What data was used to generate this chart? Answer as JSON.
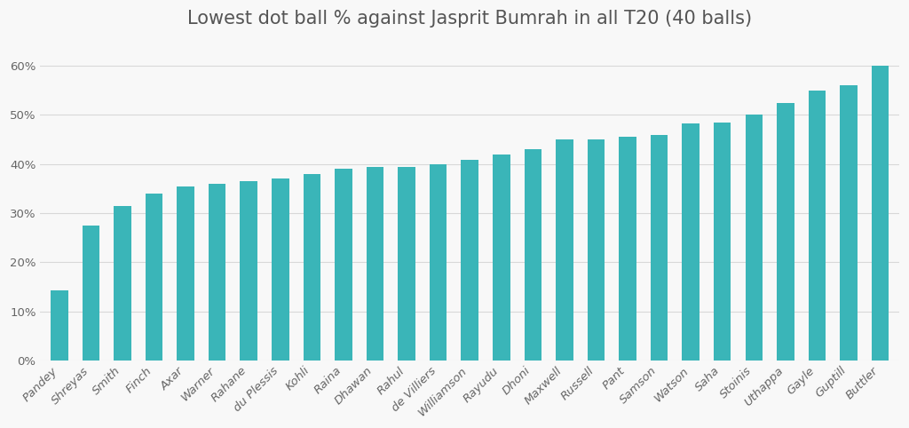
{
  "title": "Lowest dot ball % against Jasprit Bumrah in all T20 (40 balls)",
  "categories": [
    "Pandey",
    "Shreyas",
    "Smith",
    "Finch",
    "Axar",
    "Warner",
    "Rahane",
    "du Plessis",
    "Kohli",
    "Raina",
    "Dhawan",
    "Rahul",
    "de Villiers",
    "Williamson",
    "Rayudu",
    "Dhoni",
    "Maxwell",
    "Russell",
    "Pant",
    "Samson",
    "Watson",
    "Saha",
    "Stoinis",
    "Uthappa",
    "Gayle",
    "Guptill",
    "Buttler"
  ],
  "values": [
    14.3,
    27.5,
    31.5,
    34.0,
    35.5,
    36.0,
    36.5,
    37.0,
    38.0,
    39.0,
    39.5,
    39.5,
    40.0,
    40.8,
    42.0,
    43.0,
    45.0,
    45.0,
    45.5,
    46.0,
    48.2,
    48.5,
    50.0,
    52.5,
    55.0,
    56.0,
    60.0
  ],
  "bar_color": "#3ab5b8",
  "background_color": "#f8f8f8",
  "plot_bg_color": "#f8f8f8",
  "ylim": [
    0,
    65
  ],
  "ytick_values": [
    0,
    10,
    20,
    30,
    40,
    50,
    60
  ],
  "title_fontsize": 15,
  "tick_fontsize": 9.5,
  "grid_color": "#d8d8d8",
  "grid_linewidth": 0.8,
  "bar_width": 0.55
}
